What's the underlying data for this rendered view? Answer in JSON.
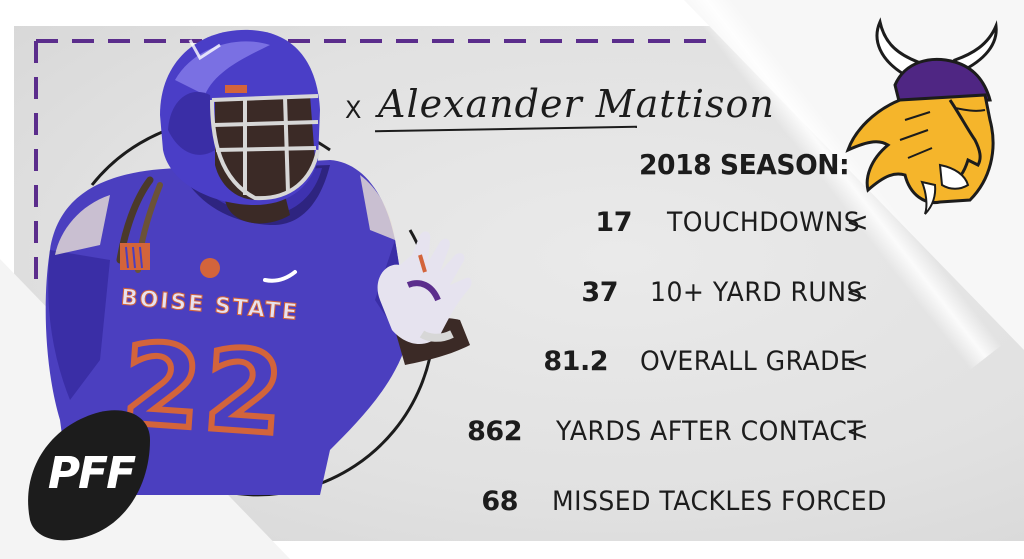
{
  "player": {
    "prefix": "X",
    "name": "Alexander Mattison",
    "jersey_text": "BOISE STATE",
    "jersey_number": "22"
  },
  "season": {
    "title": "2018 SEASON:",
    "stats": [
      {
        "value": "17",
        "label": "TOUCHDOWNS",
        "arrow": "<"
      },
      {
        "value": "37",
        "label": "10+ YARD RUNS",
        "arrow": "<"
      },
      {
        "value": "81.2",
        "label": "OVERALL GRADE",
        "arrow": "<"
      },
      {
        "value": "862",
        "label": "YARDS AFTER CONTACT",
        "arrow": "<"
      },
      {
        "value": "68",
        "label": "MISSED TACKLES FORCED",
        "arrow": ""
      }
    ]
  },
  "branding": {
    "logo_text": "PFF",
    "team_logo_icon": "vikings-logo-icon"
  },
  "colors": {
    "purple": "#5b2d8c",
    "jersey_blue": "#4b3fbf",
    "orange": "#d3643b",
    "gold": "#f5b52b",
    "text": "#1c1c1c"
  }
}
